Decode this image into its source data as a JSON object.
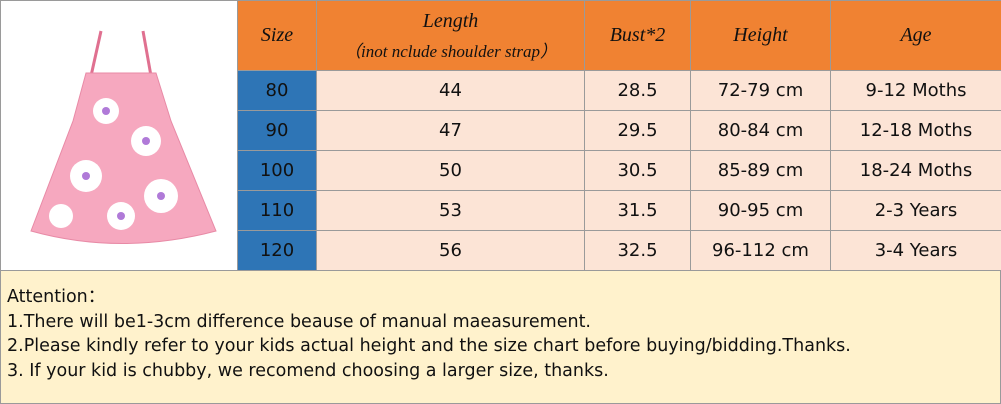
{
  "table": {
    "header": [
      "Size",
      "Length",
      "Bust*2",
      "Height",
      "Age"
    ],
    "length_note": "（inot nclude shoulder strap）",
    "rows": [
      [
        "80",
        "44",
        "28.5",
        "72-79 cm",
        "9-12 Moths"
      ],
      [
        "90",
        "47",
        "29.5",
        "80-84 cm",
        "12-18 Moths"
      ],
      [
        "100",
        "50",
        "30.5",
        "85-89 cm",
        "18-24 Moths"
      ],
      [
        "110",
        "53",
        "31.5",
        "90-95 cm",
        "2-3 Years"
      ],
      [
        "120",
        "56",
        "32.5",
        "96-112 cm",
        "3-4 Years"
      ]
    ]
  },
  "notes": {
    "title": "Attention：",
    "lines": [
      "1.There will be1-3cm difference beause of manual maeasurement.",
      "2.Please kindly refer to your kids actual height and the size chart before buying/bidding.Thanks.",
      "3. If your kid is chubby, we recomend choosing a larger size, thanks."
    ]
  }
}
